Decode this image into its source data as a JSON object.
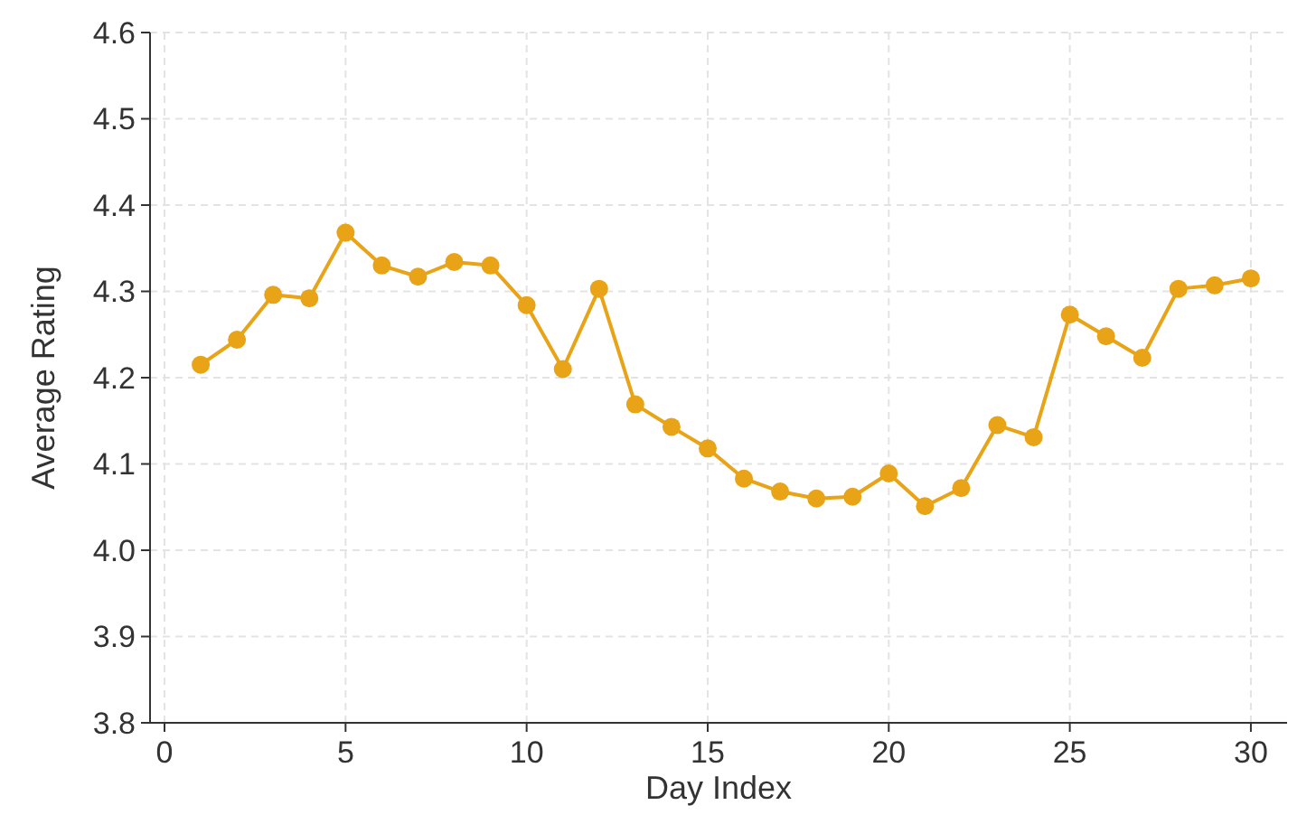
{
  "chart_data": {
    "type": "line",
    "xlabel": "Day Index",
    "ylabel": "Average Rating",
    "x": [
      1,
      2,
      3,
      4,
      5,
      6,
      7,
      8,
      9,
      10,
      11,
      12,
      13,
      14,
      15,
      16,
      17,
      18,
      19,
      20,
      21,
      22,
      23,
      24,
      25,
      26,
      27,
      28,
      29,
      30
    ],
    "series": [
      {
        "color": "#e8a317",
        "values": [
          4.215,
          4.244,
          4.296,
          4.292,
          4.368,
          4.33,
          4.317,
          4.334,
          4.33,
          4.284,
          4.21,
          4.303,
          4.169,
          4.143,
          4.118,
          4.083,
          4.068,
          4.06,
          4.062,
          4.089,
          4.051,
          4.072,
          4.145,
          4.131,
          4.273,
          4.248,
          4.223,
          4.303,
          4.307,
          4.315
        ]
      }
    ],
    "xlim": [
      -0.4,
      31
    ],
    "xticks": [
      0,
      5,
      10,
      15,
      20,
      25,
      30
    ],
    "ylim": [
      3.8,
      4.6
    ],
    "yticks": [
      {
        "value": 3.8,
        "label": "3.8"
      },
      {
        "value": 3.9,
        "label": "3.9"
      },
      {
        "value": 4.0,
        "label": "4.0"
      },
      {
        "value": 4.1,
        "label": "4.1"
      },
      {
        "value": 4.2,
        "label": "4.2"
      },
      {
        "value": 4.3,
        "label": "4.3"
      },
      {
        "value": 4.4,
        "label": "4.4"
      },
      {
        "value": 4.5,
        "label": "4.5"
      },
      {
        "value": 4.6,
        "label": "4.6"
      }
    ],
    "grid": true,
    "marker": "circle",
    "line_style": "solid"
  }
}
